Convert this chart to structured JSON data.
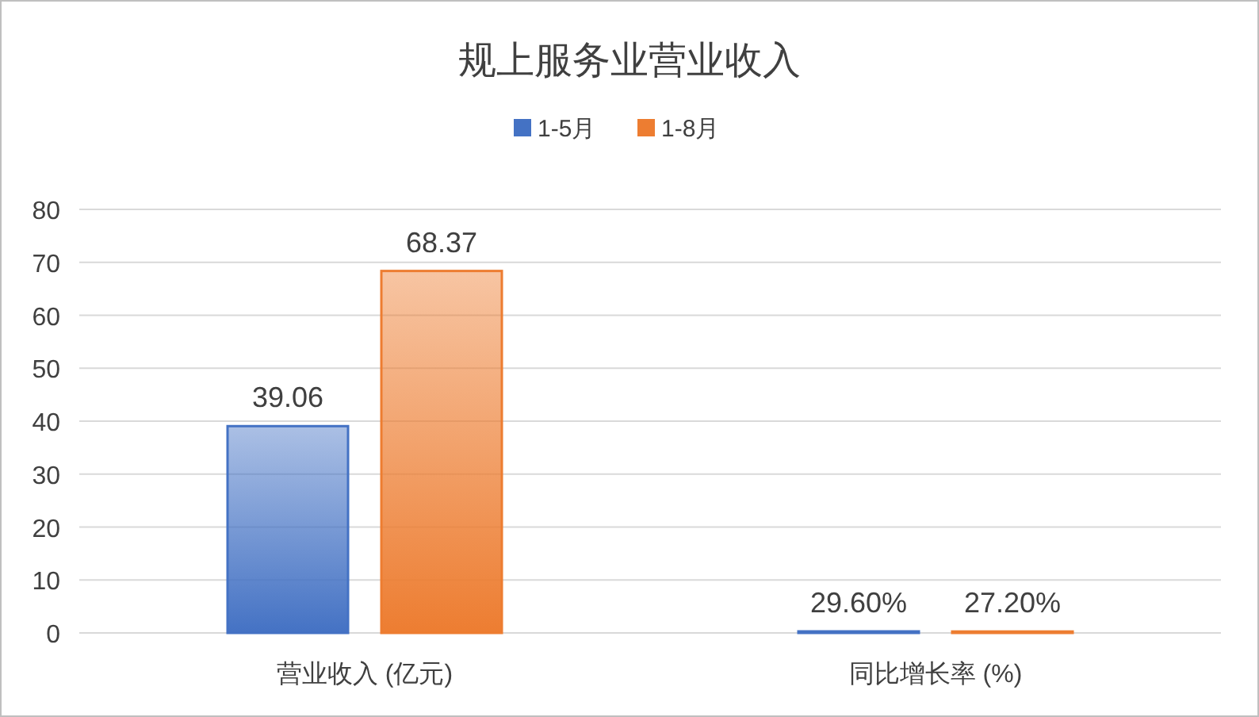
{
  "chart_data": {
    "type": "bar",
    "title": "规上服务业营业收入",
    "categories": [
      "营业收入 (亿元)",
      "同比增长率 (%)"
    ],
    "series": [
      {
        "name": "1-5月",
        "color": "#4472c4",
        "values": [
          39.06,
          0.296
        ],
        "value_labels": [
          "39.06",
          "29.60%"
        ]
      },
      {
        "name": "1-8月",
        "color": "#ed7d31",
        "values": [
          68.37,
          0.272
        ],
        "value_labels": [
          "68.37",
          "27.20%"
        ]
      }
    ],
    "ylim": [
      0,
      80
    ],
    "yticks": [
      0,
      10,
      20,
      30,
      40,
      50,
      60,
      70,
      80
    ],
    "grid": "y",
    "legend": "top"
  }
}
